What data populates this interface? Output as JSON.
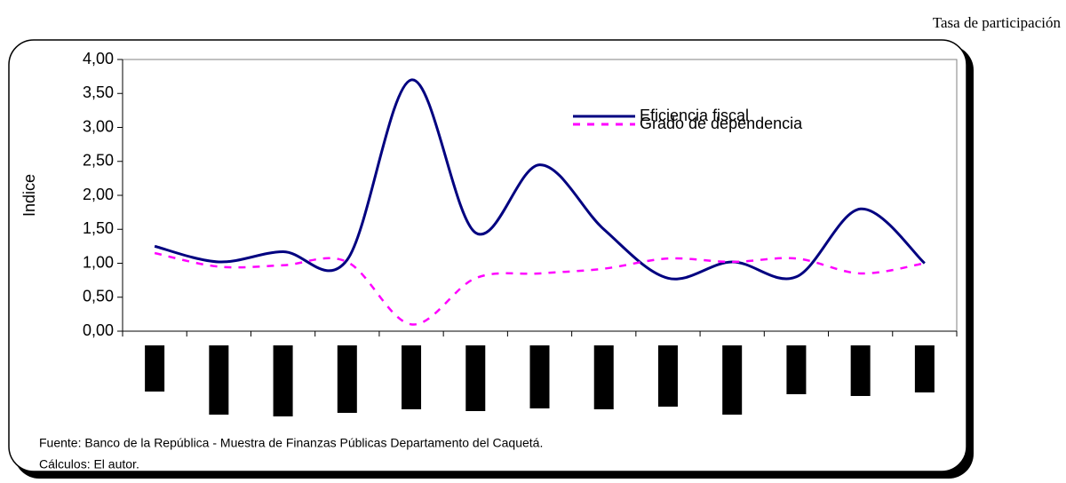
{
  "chart_data": {
    "type": "line",
    "subtitle": "Tasa de participación",
    "y_label": "Indice",
    "categories": [
      null,
      null,
      null,
      null,
      null,
      null,
      null,
      null,
      null,
      null,
      null,
      null,
      null
    ],
    "series": [
      {
        "name": "Eficiencia fiscal",
        "color": "#000080",
        "dash": "solid",
        "values": [
          1.25,
          1.02,
          1.17,
          1.05,
          3.7,
          1.45,
          2.45,
          1.5,
          0.78,
          1.02,
          0.8,
          1.8,
          1.0
        ]
      },
      {
        "name": "Grado de dependencia",
        "color": "#ff00ff",
        "dash": "dashed",
        "values": [
          1.15,
          0.95,
          0.97,
          1.02,
          0.1,
          0.78,
          0.85,
          0.92,
          1.07,
          1.02,
          1.07,
          0.85,
          1.0
        ]
      }
    ],
    "ylim": [
      0,
      4
    ],
    "yticks": [
      {
        "value": 0,
        "label": "0,00"
      },
      {
        "value": 0.5,
        "label": "0,50"
      },
      {
        "value": 1,
        "label": "1,00"
      },
      {
        "value": 1.5,
        "label": "1,50"
      },
      {
        "value": 2,
        "label": "2,00"
      },
      {
        "value": 2.5,
        "label": "2,50"
      },
      {
        "value": 3,
        "label": "3,00"
      },
      {
        "value": 3.5,
        "label": "3,50"
      },
      {
        "value": 4,
        "label": "4,00"
      }
    ],
    "legend": "upper right",
    "notes": [
      "Fuente: Banco de la República - Muestra de Finanzas Públicas Departamento del Caquetá.",
      "Cálculos: El autor."
    ]
  }
}
